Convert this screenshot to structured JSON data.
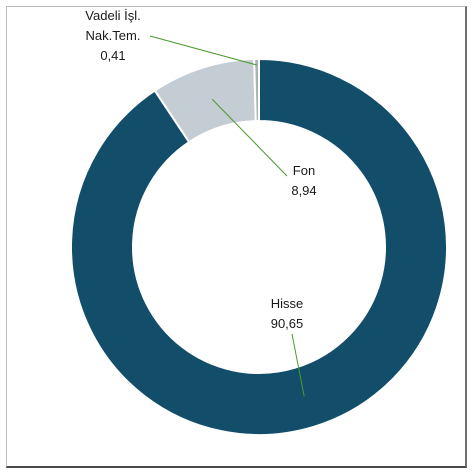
{
  "chart_data": {
    "type": "pie",
    "donut": true,
    "slices": [
      {
        "label": "Hisse",
        "value": 90.65,
        "value_text": "90,65",
        "color": "#124d69"
      },
      {
        "label": "Fon",
        "value": 8.94,
        "value_text": "8,94",
        "color": "#c4ccd4"
      },
      {
        "label": "Vadeli İşl. Nak.Tem.",
        "label_lines": [
          "Vadeli İşl.",
          "Nak.Tem."
        ],
        "value": 0.41,
        "value_text": "0,41",
        "color": "#a9b3bd"
      }
    ],
    "leader_line_color": "#4a9a2e",
    "legend": "none"
  }
}
